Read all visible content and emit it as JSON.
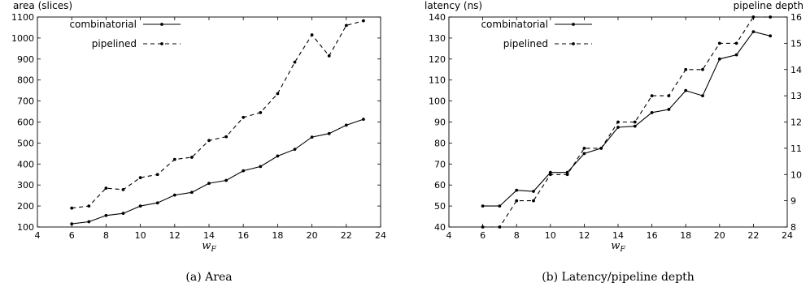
{
  "chart_data": [
    {
      "type": "line",
      "caption": "(a)  Area",
      "xlabel": "w",
      "xlabel_sub": "F",
      "ylabel": "area (slices)",
      "xlim": [
        4,
        24
      ],
      "ylim": [
        100,
        1100
      ],
      "xticks": [
        4,
        6,
        8,
        10,
        12,
        14,
        16,
        18,
        20,
        22,
        24
      ],
      "yticks": [
        100,
        200,
        300,
        400,
        500,
        600,
        700,
        800,
        900,
        1000,
        1100
      ],
      "legend": "top-left",
      "series": [
        {
          "name": "combinatorial",
          "style": "solid",
          "x": [
            6,
            7,
            8,
            9,
            10,
            11,
            12,
            13,
            14,
            15,
            16,
            17,
            18,
            19,
            20,
            21,
            22,
            23
          ],
          "y": [
            115,
            125,
            155,
            165,
            200,
            215,
            252,
            265,
            308,
            322,
            368,
            388,
            438,
            470,
            528,
            545,
            585,
            613
          ]
        },
        {
          "name": "pipelined",
          "style": "dashed",
          "x": [
            6,
            7,
            8,
            9,
            10,
            11,
            12,
            13,
            14,
            15,
            16,
            17,
            18,
            19,
            20,
            21,
            22,
            23
          ],
          "y": [
            190,
            200,
            285,
            278,
            335,
            350,
            422,
            432,
            512,
            530,
            622,
            645,
            735,
            885,
            1015,
            915,
            1060,
            1082
          ]
        }
      ]
    },
    {
      "type": "line",
      "caption": "(b)  Latency/pipeline depth",
      "xlabel": "w",
      "xlabel_sub": "F",
      "ylabel": "latency (ns)",
      "ylabel_right": "pipeline depth",
      "xlim": [
        4,
        24
      ],
      "ylim": [
        40,
        140
      ],
      "ylim_right": [
        8,
        16
      ],
      "xticks": [
        4,
        6,
        8,
        10,
        12,
        14,
        16,
        18,
        20,
        22,
        24
      ],
      "yticks": [
        40,
        50,
        60,
        70,
        80,
        90,
        100,
        110,
        120,
        130,
        140
      ],
      "yticks_right": [
        8,
        9,
        10,
        11,
        12,
        13,
        14,
        15,
        16
      ],
      "legend": "top-left",
      "series": [
        {
          "name": "combinatorial",
          "style": "solid",
          "axis": "left",
          "x": [
            6,
            7,
            8,
            9,
            10,
            11,
            12,
            13,
            14,
            15,
            16,
            17,
            18,
            19,
            20,
            21,
            22,
            23
          ],
          "y": [
            50,
            50,
            57.5,
            57,
            66,
            66,
            75,
            77.5,
            87.5,
            88,
            94.5,
            96,
            105,
            102.5,
            120,
            122,
            133,
            131
          ]
        },
        {
          "name": "pipelined",
          "style": "dashed",
          "axis": "right",
          "x": [
            6,
            7,
            8,
            9,
            10,
            11,
            12,
            13,
            14,
            15,
            16,
            17,
            18,
            19,
            20,
            21,
            22,
            23
          ],
          "y": [
            8,
            8,
            9,
            9,
            10,
            10,
            11,
            11,
            12,
            12,
            13,
            13,
            14,
            14,
            15,
            15,
            16,
            16
          ]
        }
      ]
    }
  ]
}
